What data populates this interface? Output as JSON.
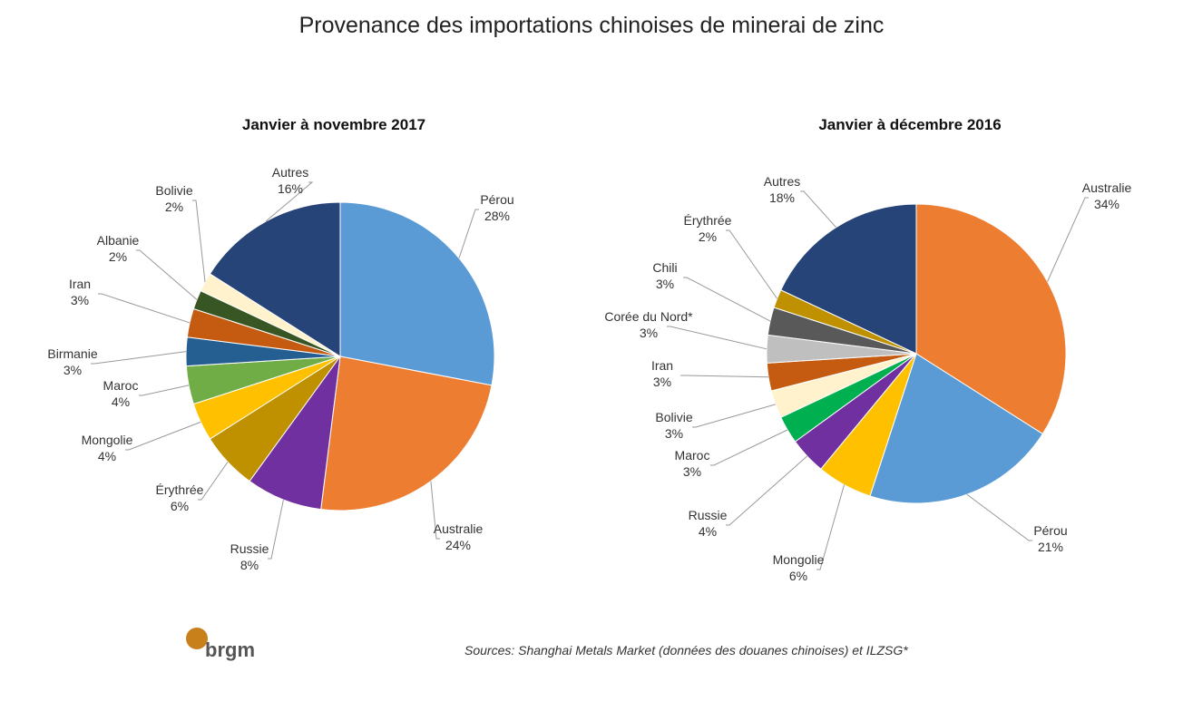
{
  "title": "Provenance des importations  chinoises de minerai de zinc",
  "source": "Sources: Shanghai Metals Market (données des douanes chinoises) et ILZSG*",
  "logo_text": "brgm",
  "chart_data": [
    {
      "type": "pie",
      "title": "Janvier à novembre 2017",
      "unit": "%",
      "slices": [
        {
          "label": "Pérou",
          "value": 28,
          "color": "#5B9BD5"
        },
        {
          "label": "Australie",
          "value": 24,
          "color": "#ED7D31"
        },
        {
          "label": "Russie",
          "value": 8,
          "color": "#7030A0"
        },
        {
          "label": "Érythrée",
          "value": 6,
          "color": "#BF9000"
        },
        {
          "label": "Mongolie",
          "value": 4,
          "color": "#FFC000"
        },
        {
          "label": "Maroc",
          "value": 4,
          "color": "#70AD47"
        },
        {
          "label": "Birmanie",
          "value": 3,
          "color": "#255E91"
        },
        {
          "label": "Iran",
          "value": 3,
          "color": "#C55A11"
        },
        {
          "label": "Albanie",
          "value": 2,
          "color": "#375623"
        },
        {
          "label": "Bolivie",
          "value": 2,
          "color": "#FFF2CC"
        },
        {
          "label": "Autres",
          "value": 16,
          "color": "#264478"
        }
      ]
    },
    {
      "type": "pie",
      "title": "Janvier à décembre 2016",
      "unit": "%",
      "slices": [
        {
          "label": "Australie",
          "value": 34,
          "color": "#ED7D31"
        },
        {
          "label": "Pérou",
          "value": 21,
          "color": "#5B9BD5"
        },
        {
          "label": "Mongolie",
          "value": 6,
          "color": "#FFC000"
        },
        {
          "label": "Russie",
          "value": 4,
          "color": "#7030A0"
        },
        {
          "label": "Maroc",
          "value": 3,
          "color": "#00B050"
        },
        {
          "label": "Bolivie",
          "value": 3,
          "color": "#FFF2CC"
        },
        {
          "label": "Iran",
          "value": 3,
          "color": "#C55A11"
        },
        {
          "label": "Corée du Nord*",
          "value": 3,
          "color": "#BFBFBF"
        },
        {
          "label": "Chili",
          "value": 3,
          "color": "#595959"
        },
        {
          "label": "Érythrée",
          "value": 2,
          "color": "#BF9000"
        },
        {
          "label": "Autres",
          "value": 18,
          "color": "#264478"
        }
      ]
    }
  ]
}
